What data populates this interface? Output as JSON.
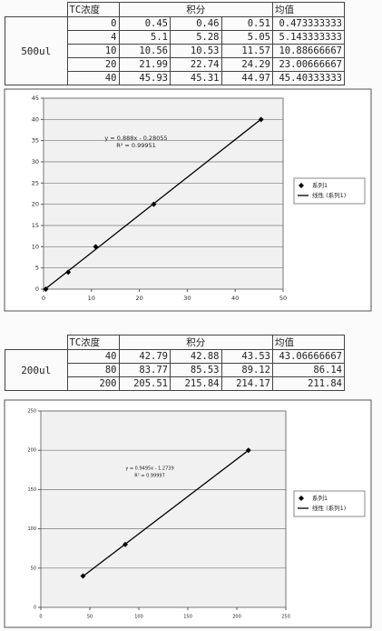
{
  "tables": [
    {
      "label": "500ul",
      "headers": [
        "TC浓度",
        "积分",
        "均值"
      ],
      "rows": [
        [
          0,
          0.45,
          0.46,
          0.51,
          0.473333333
        ],
        [
          4,
          5.1,
          5.28,
          5.05,
          5.143333333
        ],
        [
          10,
          10.56,
          10.53,
          11.57,
          10.88666667
        ],
        [
          20,
          21.99,
          22.74,
          24.29,
          23.00666667
        ],
        [
          40,
          45.93,
          45.31,
          44.97,
          45.40333333
        ]
      ]
    },
    {
      "label": "200ul",
      "headers": [
        "TC浓度",
        "积分",
        "均值"
      ],
      "rows": [
        [
          40,
          42.79,
          42.88,
          43.53,
          43.06666667
        ],
        [
          80,
          83.77,
          85.53,
          89.12,
          86.14
        ],
        [
          200,
          205.51,
          215.84,
          214.17,
          211.84
        ]
      ]
    }
  ],
  "chart_data": [
    {
      "type": "scatter",
      "equation": "y = 0.888x - 0.28055",
      "r_squared": "R² = 0.99951",
      "series": [
        {
          "name": "系列1",
          "color": "#000000",
          "x": [
            0.473333333,
            5.143333333,
            10.88666667,
            23.00666667,
            45.40333333
          ],
          "values": [
            0,
            4,
            10,
            20,
            40
          ]
        }
      ],
      "trendline_name": "线性 (系列1)",
      "xlim": [
        0,
        50
      ],
      "xticks": [
        0,
        10,
        20,
        30,
        40,
        50
      ],
      "ylim": [
        0,
        45
      ],
      "yticks": [
        0,
        5,
        10,
        15,
        20,
        25,
        30,
        35,
        40,
        45
      ],
      "grid": true
    },
    {
      "type": "scatter",
      "equation": "y = 0.9495x - 1.2739",
      "r_squared": "R² = 0.99997",
      "series": [
        {
          "name": "系列1",
          "color": "#000000",
          "x": [
            43.06666667,
            86.14,
            211.84
          ],
          "values": [
            40,
            80,
            200
          ]
        }
      ],
      "trendline_name": "线性 (系列1)",
      "xlim": [
        0,
        250
      ],
      "xticks": [
        0,
        50,
        100,
        150,
        200,
        250
      ],
      "ylim": [
        0,
        250
      ],
      "yticks": [
        0,
        50,
        100,
        150,
        200,
        250
      ],
      "grid": true
    }
  ]
}
